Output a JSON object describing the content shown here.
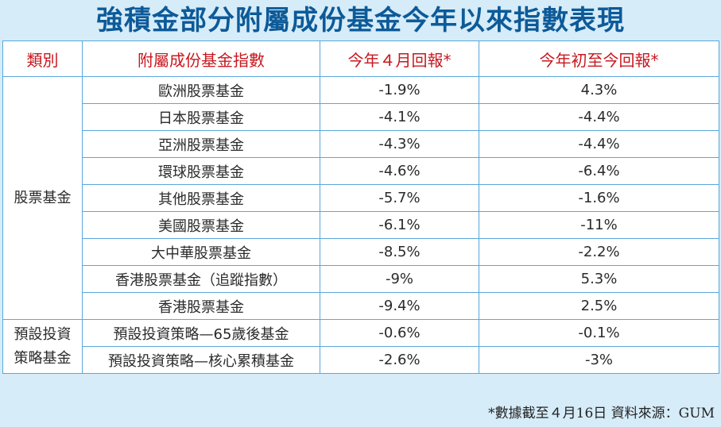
{
  "title": "強積金部分附屬成份基金今年以來指數表現",
  "headers": {
    "category": "類別",
    "fund_index": "附屬成份基金指數",
    "april_return": "今年４月回報*",
    "ytd_return": "今年初至今回報*"
  },
  "groups": [
    {
      "category": "股票基金",
      "rows": [
        {
          "name": "歐洲股票基金",
          "april": "-1.9%",
          "ytd": "4.3%"
        },
        {
          "name": "日本股票基金",
          "april": "-4.1%",
          "ytd": "-4.4%"
        },
        {
          "name": "亞洲股票基金",
          "april": "-4.3%",
          "ytd": "-4.4%"
        },
        {
          "name": "環球股票基金",
          "april": "-4.6%",
          "ytd": "-6.4%"
        },
        {
          "name": "其他股票基金",
          "april": "-5.7%",
          "ytd": "-1.6%"
        },
        {
          "name": "美國股票基金",
          "april": "-6.1%",
          "ytd": "-11%"
        },
        {
          "name": "大中華股票基金",
          "april": "-8.5%",
          "ytd": "-2.2%"
        },
        {
          "name": "香港股票基金（追蹤指數）",
          "april": "-9%",
          "ytd": "5.3%"
        },
        {
          "name": "香港股票基金",
          "april": "-9.4%",
          "ytd": "2.5%"
        }
      ]
    },
    {
      "category_lines": [
        "預設投資",
        "策略基金"
      ],
      "rows": [
        {
          "name": "預設投資策略—65歲後基金",
          "april": "-0.6%",
          "ytd": "-0.1%"
        },
        {
          "name": "預設投資策略—核心累積基金",
          "april": "-2.6%",
          "ytd": "-3%"
        }
      ]
    }
  ],
  "footnote": "*數據截至４月16日  資料來源：GUM",
  "colors": {
    "background": "#d6ecf9",
    "title": "#0d5a98",
    "header_text": "#c8181e",
    "border": "#5aa7dc"
  }
}
